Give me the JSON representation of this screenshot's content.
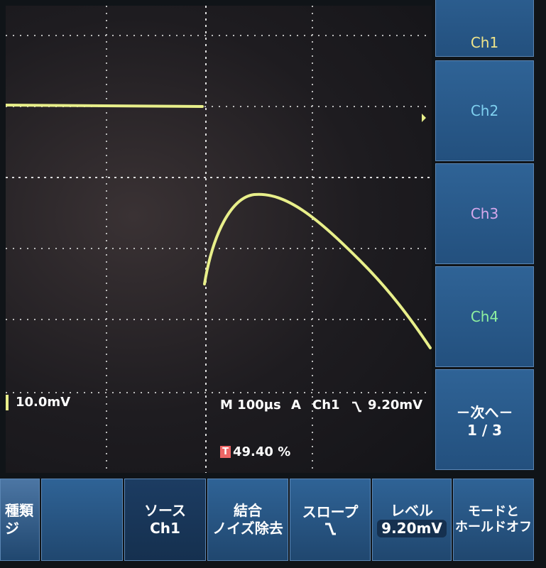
{
  "side_menu": {
    "items": [
      {
        "label": "Ch1"
      },
      {
        "label": "Ch2"
      },
      {
        "label": "Ch3"
      },
      {
        "label": "Ch4"
      },
      {
        "label": "－次へ－",
        "sub": "1 / 3"
      }
    ]
  },
  "status": {
    "scale": "10.0mV",
    "timebase": "M 100µs",
    "trigger_mode": "A",
    "trigger_source": "Ch1",
    "trigger_level": "9.20mV",
    "trigger_position": "49.40 %"
  },
  "bottom_menu": {
    "items": [
      {
        "title": "種類",
        "value": "ジ"
      },
      {
        "title": "ソース",
        "value": "Ch1"
      },
      {
        "title": "結合",
        "value": "ノイズ除去"
      },
      {
        "title": "スロープ"
      },
      {
        "title": "レベル",
        "value": "9.20mV"
      },
      {
        "title": "モードと",
        "value": "ホールドオフ"
      }
    ]
  }
}
